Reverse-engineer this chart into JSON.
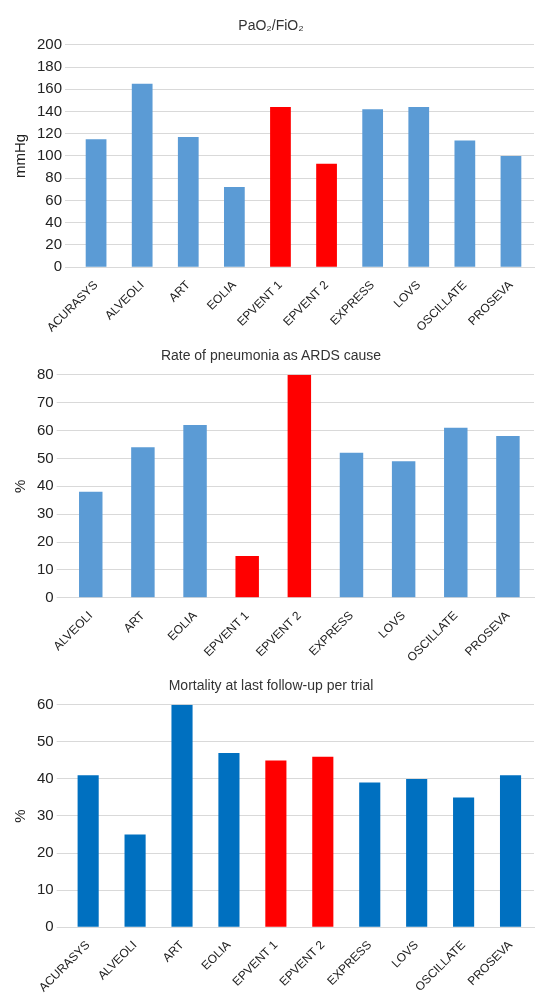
{
  "chart_data": [
    {
      "type": "bar",
      "title": "PaO₂/FiO₂",
      "ylabel": "mmHg",
      "categories": [
        "ACURASYS",
        "ALVEOLI",
        "ART",
        "EOLIA",
        "EPVENT 1",
        "EPVENT 2",
        "EXPRESS",
        "LOVS",
        "OSCILLATE",
        "PROSEVA"
      ],
      "values": [
        115,
        165,
        117,
        72,
        144,
        93,
        142,
        144,
        114,
        100
      ],
      "colors": [
        "#5b9bd5",
        "#5b9bd5",
        "#5b9bd5",
        "#5b9bd5",
        "#ff0000",
        "#ff0000",
        "#5b9bd5",
        "#5b9bd5",
        "#5b9bd5",
        "#5b9bd5"
      ],
      "ylim": [
        0,
        200
      ],
      "yticks": [
        0,
        20,
        40,
        60,
        80,
        100,
        120,
        140,
        160,
        180,
        200
      ],
      "grid": "y",
      "legend": false
    },
    {
      "type": "bar",
      "title": "Rate of pneumonia as ARDS cause",
      "ylabel": "%",
      "categories": [
        "ALVEOLI",
        "ART",
        "EOLIA",
        "EPVENT 1",
        "EPVENT 2",
        "EXPRESS",
        "LOVS",
        "OSCILLATE",
        "PROSEVA"
      ],
      "values": [
        38,
        54,
        62,
        15,
        80,
        52,
        49,
        61,
        58
      ],
      "colors": [
        "#5b9bd5",
        "#5b9bd5",
        "#5b9bd5",
        "#ff0000",
        "#ff0000",
        "#5b9bd5",
        "#5b9bd5",
        "#5b9bd5",
        "#5b9bd5"
      ],
      "ylim": [
        0,
        80
      ],
      "yticks": [
        0,
        10,
        20,
        30,
        40,
        50,
        60,
        70,
        80
      ],
      "grid": "y",
      "legend": false
    },
    {
      "type": "bar",
      "title": "Mortality at last follow-up per trial",
      "ylabel": "%",
      "categories": [
        "ACURASYS",
        "ALVEOLI",
        "ART",
        "EOLIA",
        "EPVENT 1",
        "EPVENT 2",
        "EXPRESS",
        "LOVS",
        "OSCILLATE",
        "PROSEVA"
      ],
      "values": [
        41,
        25,
        60,
        47,
        45,
        46,
        39,
        40,
        35,
        41
      ],
      "colors": [
        "#0070c0",
        "#0070c0",
        "#0070c0",
        "#0070c0",
        "#ff0000",
        "#ff0000",
        "#0070c0",
        "#0070c0",
        "#0070c0",
        "#0070c0"
      ],
      "ylim": [
        0,
        60
      ],
      "yticks": [
        0,
        10,
        20,
        30,
        40,
        50,
        60
      ],
      "grid": "y",
      "legend": false
    }
  ]
}
